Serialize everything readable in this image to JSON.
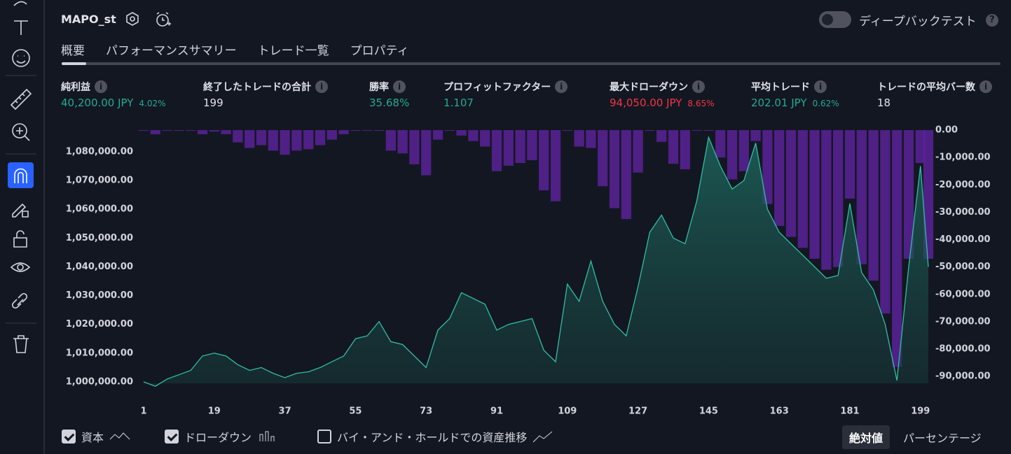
{
  "header": {
    "title": "MAPO_st",
    "deep_backtest": "ディープバックテスト"
  },
  "tabs": [
    "概要",
    "パフォーマンスサマリー",
    "トレード一覧",
    "プロパティ"
  ],
  "metrics": [
    {
      "label": "純利益",
      "value": "40,200.00 JPY",
      "sub": "4.02%",
      "color": "#22ab94"
    },
    {
      "label": "終了したトレードの合計",
      "value": "199",
      "color": "#e1e3eb"
    },
    {
      "label": "勝率",
      "value": "35.68%",
      "color": "#22ab94"
    },
    {
      "label": "プロフィットファクター",
      "value": "1.107",
      "color": "#22ab94"
    },
    {
      "label": "最大ドローダウン",
      "value": "94,050.00 JPY",
      "sub": "8.65%",
      "color": "#f23645"
    },
    {
      "label": "平均トレード",
      "value": "202.01 JPY",
      "sub": "0.62%",
      "color": "#22ab94"
    },
    {
      "label": "トレードの平均バー数",
      "value": "18",
      "color": "#e1e3eb"
    }
  ],
  "chart_data": {
    "type": "combo",
    "x": [
      1,
      4,
      7,
      10,
      13,
      16,
      19,
      22,
      25,
      28,
      31,
      34,
      37,
      40,
      43,
      46,
      49,
      52,
      55,
      58,
      61,
      64,
      67,
      70,
      73,
      76,
      79,
      82,
      85,
      88,
      91,
      94,
      97,
      100,
      103,
      106,
      109,
      112,
      115,
      118,
      121,
      124,
      127,
      130,
      133,
      136,
      139,
      142,
      145,
      148,
      151,
      154,
      157,
      160,
      163,
      166,
      169,
      172,
      175,
      178,
      181,
      184,
      187,
      190,
      193,
      196,
      199,
      201
    ],
    "series": [
      {
        "name": "資本",
        "type": "area",
        "color": "#2fbfa5",
        "axis": "y",
        "values": [
          1000000,
          998500,
          1001000,
          1002500,
          1004000,
          1009000,
          1010000,
          1009000,
          1006000,
          1004000,
          1005000,
          1003000,
          1001500,
          1003000,
          1003500,
          1005000,
          1007000,
          1009000,
          1015000,
          1016000,
          1021000,
          1014000,
          1013000,
          1009000,
          1005000,
          1018000,
          1022000,
          1031000,
          1029000,
          1027000,
          1018000,
          1020000,
          1021000,
          1022000,
          1011000,
          1007000,
          1034000,
          1028000,
          1042000,
          1028000,
          1020000,
          1016000,
          1033000,
          1052000,
          1058000,
          1050000,
          1048000,
          1063000,
          1085000,
          1075000,
          1067000,
          1070000,
          1083000,
          1060000,
          1052000,
          1048000,
          1044000,
          1040000,
          1036000,
          1037000,
          1062000,
          1038000,
          1032000,
          1020000,
          1000500,
          1040000,
          1075000,
          1040000
        ]
      },
      {
        "name": "ドローダウン",
        "type": "bar",
        "color": "#5b2296",
        "axis": "y2",
        "values": [
          0,
          -1500,
          0,
          0,
          0,
          -1500,
          -500,
          -1500,
          -4500,
          -6500,
          -5500,
          -7500,
          -9000,
          -7500,
          -7000,
          -5500,
          -3500,
          -1500,
          0,
          0,
          0,
          -7500,
          -8500,
          -12500,
          -16500,
          -3500,
          0,
          -2000,
          -4000,
          -6000,
          -15000,
          -13000,
          -12000,
          -11000,
          -22000,
          -26000,
          0,
          -6000,
          -6500,
          -20500,
          -28500,
          -32500,
          -15500,
          0,
          -4300,
          -12300,
          -14300,
          0,
          0,
          -10000,
          -18000,
          -15000,
          -4000,
          -27000,
          -35000,
          -39000,
          -43000,
          -47000,
          -51000,
          -50000,
          -25000,
          -49000,
          -55000,
          -67000,
          -86500,
          -47000,
          -12000,
          -47000
        ]
      }
    ],
    "xlim": [
      1,
      201
    ],
    "xticks": [
      1,
      19,
      37,
      55,
      73,
      91,
      109,
      127,
      145,
      163,
      181,
      199
    ],
    "ylim": [
      999500,
      1087500
    ],
    "yticks": [
      {
        "value": 1000000,
        "label": "1,000,000.00"
      },
      {
        "value": 1010000,
        "label": "1,010,000.00"
      },
      {
        "value": 1020000,
        "label": "1,020,000.00"
      },
      {
        "value": 1030000,
        "label": "1,030,000.00"
      },
      {
        "value": 1040000,
        "label": "1,040,000.00"
      },
      {
        "value": 1050000,
        "label": "1,050,000.00"
      },
      {
        "value": 1060000,
        "label": "1,060,000.00"
      },
      {
        "value": 1070000,
        "label": "1,070,000.00"
      },
      {
        "value": 1080000,
        "label": "1,080,000.00"
      }
    ],
    "y2lim": [
      -92500,
      0
    ],
    "y2ticks": [
      {
        "value": 0,
        "label": "0.00"
      },
      {
        "value": -10000,
        "label": "-10,000.00"
      },
      {
        "value": -20000,
        "label": "-20,000.00"
      },
      {
        "value": -30000,
        "label": "-30,000.00"
      },
      {
        "value": -40000,
        "label": "-40,000.00"
      },
      {
        "value": -50000,
        "label": "-50,000.00"
      },
      {
        "value": -60000,
        "label": "-60,000.00"
      },
      {
        "value": -70000,
        "label": "-70,000.00"
      },
      {
        "value": -80000,
        "label": "-80,000.00"
      },
      {
        "value": -90000,
        "label": "-90,000.00"
      }
    ]
  },
  "footer": {
    "buy_hold": "バイ・アンド・ホールドでの資産推移",
    "modes": [
      "絶対値",
      "パーセンテージ"
    ]
  }
}
